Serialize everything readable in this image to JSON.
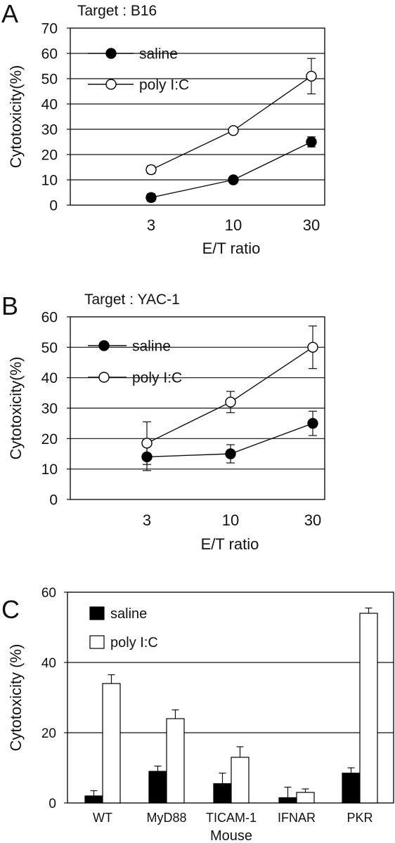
{
  "chart_data": [
    {
      "panel_label": "A",
      "type": "line",
      "title": "Target : B16",
      "xlabel": "E/T ratio",
      "ylabel": "Cytotoxicity(%)",
      "categories": [
        "3",
        "10",
        "30"
      ],
      "ylim": [
        0,
        70
      ],
      "yticks": [
        0,
        10,
        20,
        30,
        40,
        50,
        60,
        70
      ],
      "grid": "horizontal",
      "legend_position": "top-left",
      "series": [
        {
          "name": "saline",
          "marker": "filled-circle",
          "values": [
            3,
            10,
            25
          ],
          "errors": [
            1.5,
            0.6,
            2.0
          ]
        },
        {
          "name": "poly I:C",
          "marker": "open-circle",
          "values": [
            14,
            29.5,
            51
          ],
          "errors": [
            1.5,
            0.6,
            7.0
          ]
        }
      ]
    },
    {
      "panel_label": "B",
      "type": "line",
      "title": "Target : YAC-1",
      "xlabel": "E/T ratio",
      "ylabel": "Cytotoxicity(%)",
      "categories": [
        "3",
        "10",
        "30"
      ],
      "ylim": [
        0,
        60
      ],
      "yticks": [
        0,
        10,
        20,
        30,
        40,
        50,
        60
      ],
      "grid": "horizontal",
      "legend_position": "top-left",
      "series": [
        {
          "name": "saline",
          "marker": "filled-circle",
          "values": [
            14,
            15,
            25
          ],
          "errors": [
            4.5,
            3.0,
            4.0
          ]
        },
        {
          "name": "poly I:C",
          "marker": "open-circle",
          "values": [
            18.5,
            32,
            50
          ],
          "errors": [
            7.0,
            3.5,
            7.0
          ]
        }
      ]
    },
    {
      "panel_label": "C",
      "type": "bar",
      "title": "",
      "xlabel": "Mouse",
      "ylabel": "Cytotoxicity (%)",
      "categories": [
        "WT",
        "MyD88",
        "TICAM-1",
        "IFNAR",
        "PKR"
      ],
      "ylim": [
        0,
        60
      ],
      "yticks": [
        0,
        20,
        40,
        60
      ],
      "grid": "horizontal",
      "legend_position": "top-left",
      "series": [
        {
          "name": "saline",
          "fill": "#000000",
          "values": [
            2,
            9,
            5.5,
            1.5,
            8.5
          ],
          "errors": [
            1.5,
            1.5,
            3.0,
            3.0,
            1.5
          ]
        },
        {
          "name": "poly I:C",
          "fill": "#ffffff",
          "values": [
            34,
            24,
            13,
            3,
            54
          ],
          "errors": [
            2.5,
            2.5,
            3.0,
            1.0,
            1.5
          ]
        }
      ]
    }
  ]
}
